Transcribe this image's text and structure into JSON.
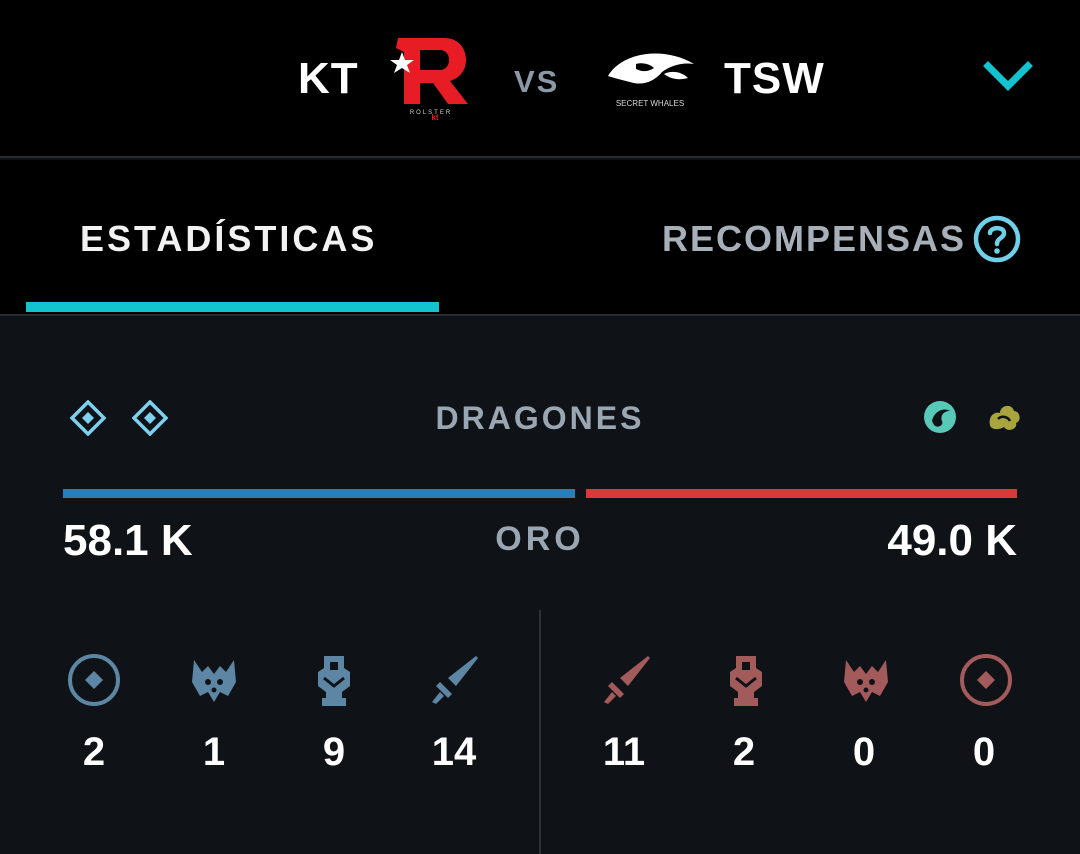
{
  "header": {
    "team_a": "KT",
    "team_b": "TSW",
    "vs": "VS",
    "team_a_logo": {
      "icon": "kt-rolster-logo",
      "color": "#e81c24",
      "lettering": [
        "ROLSTER",
        "kt"
      ]
    },
    "team_b_logo": {
      "icon": "secret-whales-logo",
      "color": "#ffffff",
      "lettering": "SECRET WHALES"
    },
    "chevron": {
      "icon": "chevron-down-icon",
      "color": "#12c4cf"
    }
  },
  "tabs": {
    "stats_label": "ESTADÍSTICAS",
    "rewards_label": "RECOMPENSAS",
    "active_color": "#12c4cf",
    "help_icon": "help-circle-icon"
  },
  "dragons": {
    "label": "DRAGONES",
    "team_a": [
      "cloud-drake-icon",
      "cloud-drake-icon"
    ],
    "team_b": [
      "ocean-drake-icon",
      "mountain-drake-icon"
    ],
    "colors": {
      "cloud": "#7fd0ee",
      "ocean": "#57c9b6",
      "mountain": "#a8a43e"
    }
  },
  "gold": {
    "label": "ORO",
    "team_a": "58.1 K",
    "team_b": "49.0 K",
    "team_a_value": 58.1,
    "team_b_value": 49.0,
    "team_a_color": "#2a7fb9",
    "team_b_color": "#d83a3a"
  },
  "stats": {
    "team_a_color": "#5c86a3",
    "team_b_color": "#a35a5a",
    "team_a": [
      {
        "icon": "inhibitor-icon",
        "value": "2"
      },
      {
        "icon": "baron-icon",
        "value": "1"
      },
      {
        "icon": "tower-icon",
        "value": "9"
      },
      {
        "icon": "sword-icon",
        "value": "14"
      }
    ],
    "team_b": [
      {
        "icon": "sword-icon",
        "value": "11"
      },
      {
        "icon": "tower-icon",
        "value": "2"
      },
      {
        "icon": "baron-icon",
        "value": "0"
      },
      {
        "icon": "inhibitor-icon",
        "value": "0"
      }
    ]
  }
}
